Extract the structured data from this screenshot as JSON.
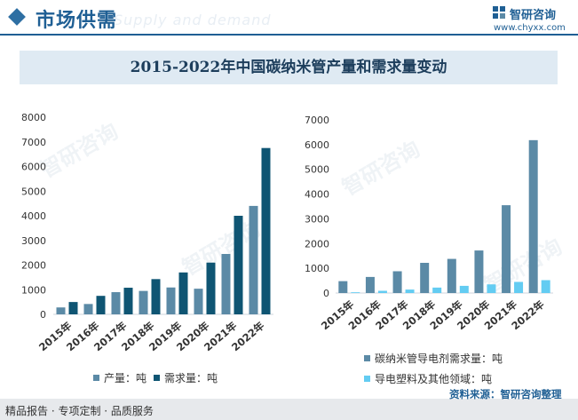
{
  "header": {
    "title": "市场供需",
    "title_bg": "Supply and demand"
  },
  "brand": {
    "name": "智研咨询",
    "site": "www.chyxx.com"
  },
  "watermark": "智研咨询",
  "footer": {
    "left": "精品报告 · 专项定制 · 品质服务",
    "source": "资料来源：智研咨询整理"
  },
  "colors": {
    "brand": "#1f5f94",
    "left_s1": "#5b8aa6",
    "left_s2": "#0f5573",
    "right_s1": "#5b8aa6",
    "right_s2": "#63ccf2"
  },
  "chart_data": [
    {
      "type": "bar",
      "title": "2015-2022年中国碳纳米管产量和需求量变动",
      "categories": [
        "2015年",
        "2016年",
        "2017年",
        "2018年",
        "2019年",
        "2020年",
        "2021年",
        "2022年"
      ],
      "ylim": [
        0,
        8000
      ],
      "yticks": [
        "0",
        "1000",
        "2000",
        "3000",
        "4000",
        "5000",
        "6000",
        "7000",
        "8000"
      ],
      "legend_position": "bottom",
      "series": [
        {
          "name": "产量：吨",
          "values": [
            280,
            420,
            900,
            950,
            1090,
            1040,
            2450,
            4400
          ]
        },
        {
          "name": "需求量：吨",
          "values": [
            500,
            750,
            1080,
            1430,
            1700,
            2100,
            4000,
            6750
          ]
        }
      ]
    },
    {
      "type": "bar",
      "categories": [
        "2015年",
        "2016年",
        "2017年",
        "2018年",
        "2019年",
        "2020年",
        "2021年",
        "2022年"
      ],
      "ylim": [
        0,
        7000
      ],
      "yticks": [
        "0",
        "1000",
        "2000",
        "3000",
        "4000",
        "5000",
        "6000",
        "7000"
      ],
      "legend_position": "bottom",
      "series": [
        {
          "name": "碳纳米管导电剂需求量：吨",
          "values": [
            480,
            650,
            880,
            1220,
            1380,
            1720,
            3550,
            6180
          ]
        },
        {
          "name": "导电塑料及其他领域：吨",
          "values": [
            30,
            90,
            140,
            220,
            290,
            350,
            450,
            520
          ]
        }
      ]
    }
  ]
}
